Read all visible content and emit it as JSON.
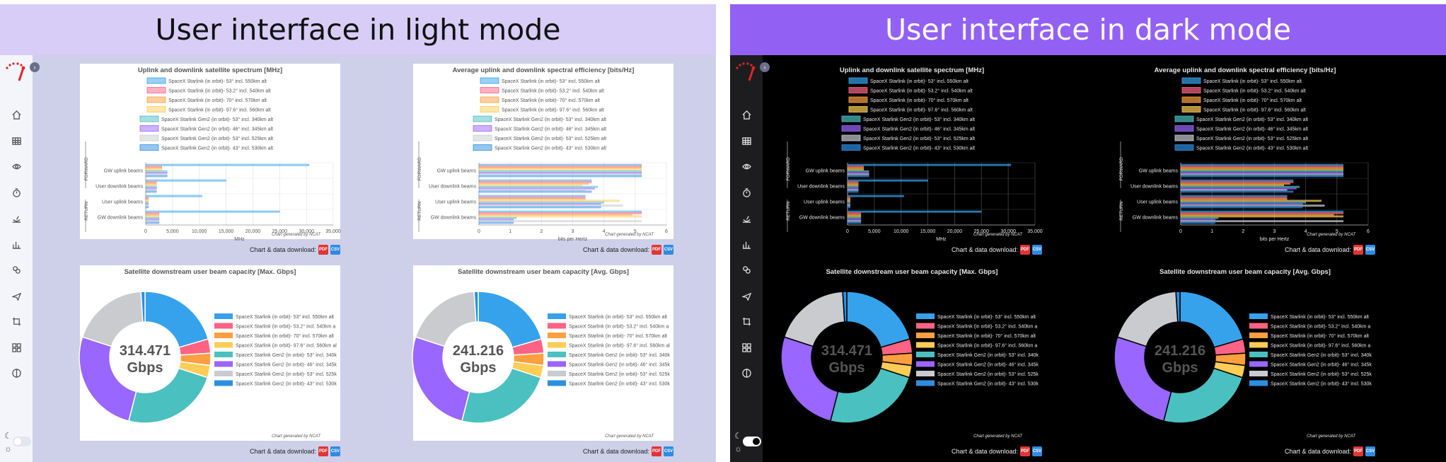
{
  "banners": {
    "light": "User interface in light mode",
    "dark": "User interface in dark mode"
  },
  "icons": {
    "sidebar": [
      "home-icon",
      "table-icon",
      "eye-icon",
      "timer-icon",
      "satellite-dish-icon",
      "bar-chart-icon",
      "globe-network-icon",
      "airplane-icon",
      "crop-icon",
      "dashboard-icon",
      "pie-icon"
    ],
    "mode": [
      "moon-icon",
      "sun-icon"
    ]
  },
  "download": {
    "label": "Chart & data download:",
    "pdf": "PDF",
    "csv": "CSV"
  },
  "credit": "Chart generated by NCAT",
  "legend_full": [
    "SpaceX Starlink (in orbit)- 53° incl. 550km alt",
    "SpaceX Starlink (in orbit)- 53.2° incl. 540km alt",
    "SpaceX Starlink (in orbit)- 70° incl. 570km alt",
    "SpaceX Starlink (in orbit)- 97.6° incl. 560km alt",
    "SpaceX Starlink Gen2 (in orbit)- 53° incl. 340km alt",
    "SpaceX Starlink Gen2 (in orbit)- 46° incl. 345km alt",
    "SpaceX Starlink Gen2 (in orbit)- 53° incl. 525km alt",
    "SpaceX Starlink Gen2 (in orbit)- 43° incl. 530km alt"
  ],
  "legend_pie_light": [
    "SpaceX Starlink (in orbit)- 53° incl. 550km alt",
    "SpaceX Starlink (in orbit)- 53.2° incl. 540km a",
    "SpaceX Starlink (in orbit)- 70° incl. 570km alt",
    "SpaceX Starlink (in orbit)- 97.6° incl. 560km al",
    "SpaceX Starlink Gen2 (in orbit)- 53° incl. 340k",
    "SpaceX Starlink Gen2 (in orbit)- 46° incl. 345k",
    "SpaceX Starlink Gen2 (in orbit)- 53° incl. 525k",
    "SpaceX Starlink Gen2 (in orbit)- 43° incl. 530k"
  ],
  "legend_pie_dark": [
    "SpaceX Starlink (in orbit)- 53° incl. 550km alt",
    "SpaceX Starlink (in orbit)- 53.2° incl. 540km a",
    "SpaceX Starlink (in orbit)- 70° incl. 570km alt",
    "SpaceX Starlink (in orbit)- 97.6° incl. 560km a",
    "SpaceX Starlink Gen2 (in orbit)- 53° incl. 340k",
    "SpaceX Starlink Gen2 (in orbit)- 46° incl. 345k",
    "SpaceX Starlink Gen2 (in orbit)- 53° incl. 525k",
    "SpaceX Starlink Gen2 (in orbit)- 43° incl. 530k"
  ],
  "series_colors": [
    "#36a2eb",
    "#ff6384",
    "#ff9f40",
    "#ffcd56",
    "#4bc0c0",
    "#9966ff",
    "#c9cbcf",
    "#2c8fe0"
  ],
  "theme": {
    "light": {
      "text": "#555555",
      "grid": "#e6e6e6",
      "axis": "#999999",
      "bar_alpha": 0.5
    },
    "dark": {
      "text": "#e6e6e6",
      "grid": "#444444",
      "axis": "#bbbbbb",
      "bar_alpha": 0.7
    }
  },
  "chart_data": [
    {
      "type": "bar",
      "orientation": "horizontal",
      "title": "Uplink and downlink satellite spectrum [MHz]",
      "xlabel": "MHz",
      "categories": [
        "GW uplink beams",
        "User downlink beams",
        "User uplink beams",
        "GW downlink beams"
      ],
      "group_labels": {
        "forward": "FORWARD",
        "return": "RETURN"
      },
      "xlim": [
        0,
        35000
      ],
      "xticks": [
        "0",
        "5,000",
        "10,000",
        "15,000",
        "20,000",
        "25,000",
        "30,000",
        "35,000"
      ],
      "series": [
        {
          "values": [
            30500,
            15000,
            10500,
            25000
          ]
        },
        {
          "values": [
            3000,
            2000,
            500,
            2500
          ]
        },
        {
          "values": [
            3000,
            2000,
            500,
            2500
          ]
        },
        {
          "values": [
            3000,
            2000,
            500,
            2500
          ]
        },
        {
          "values": [
            4000,
            2000,
            500,
            2500
          ]
        },
        {
          "values": [
            4000,
            2000,
            500,
            2500
          ]
        },
        {
          "values": [
            4000,
            2000,
            500,
            2500
          ]
        },
        {
          "values": [
            4000,
            2000,
            500,
            2500
          ]
        }
      ]
    },
    {
      "type": "bar",
      "orientation": "horizontal",
      "title": "Average uplink and downlink spectral efficiency [bits/Hz]",
      "xlabel": "bits per Hertz",
      "categories": [
        "GW uplink beams",
        "User downlink beams",
        "User uplink beams",
        "GW downlink beams"
      ],
      "group_labels": {
        "forward": "FORWARD",
        "return": "RETURN"
      },
      "xlim": [
        0,
        6
      ],
      "xticks": [
        "0",
        "1",
        "2",
        "3",
        "4",
        "5",
        "6"
      ],
      "series": [
        {
          "values": [
            5.2,
            3.6,
            3.4,
            5.2
          ]
        },
        {
          "values": [
            5.2,
            3.6,
            3.4,
            5.2
          ]
        },
        {
          "values": [
            5.2,
            3.5,
            3.4,
            4.9
          ]
        },
        {
          "values": [
            5.2,
            3.3,
            4.5,
            5.2
          ]
        },
        {
          "values": [
            5.2,
            3.8,
            4.0,
            1.2
          ]
        },
        {
          "values": [
            5.2,
            3.7,
            3.9,
            1.1
          ]
        },
        {
          "values": [
            5.2,
            3.4,
            4.6,
            5.2
          ]
        },
        {
          "values": [
            5.2,
            3.6,
            3.9,
            1.1
          ]
        }
      ]
    },
    {
      "type": "pie",
      "title": "Satellite downstream user beam capacity [Max. Gbps]",
      "center_value": "314.471",
      "center_unit": "Gbps",
      "values": [
        20.5,
        3.5,
        3.0,
        3.0,
        24.0,
        26.0,
        19.0,
        1.0
      ]
    },
    {
      "type": "pie",
      "title": "Satellite downstream user beam capacity [Avg. Gbps]",
      "center_value": "241.216",
      "center_unit": "Gbps",
      "values": [
        20.5,
        3.5,
        3.0,
        3.0,
        24.0,
        26.0,
        19.0,
        1.0
      ]
    }
  ]
}
